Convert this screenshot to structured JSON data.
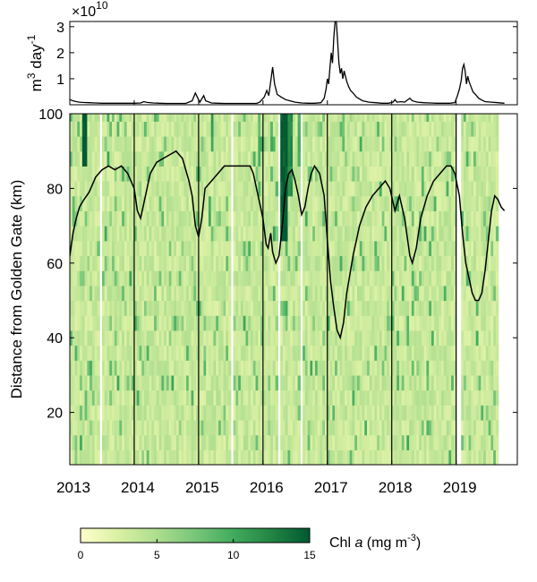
{
  "chart_data": [
    {
      "type": "line",
      "panel": "top",
      "title": "",
      "ylabel": "m³ day⁻¹",
      "ylabel_base": "m",
      "ylabel_exp1": "3",
      "ylabel_mid": " day",
      "ylabel_exp2": "-1",
      "y_multiplier": "×10",
      "y_multiplier_exp": "10",
      "xlim": [
        2013.0,
        2019.95
      ],
      "ylim": [
        0,
        3.2
      ],
      "yticks": [
        1,
        2,
        3
      ],
      "ytick_labels": [
        "1",
        "2",
        "3"
      ],
      "series": [
        {
          "values": [
            [
              2013.0,
              0.2
            ],
            [
              2013.05,
              0.15
            ],
            [
              2013.1,
              0.12
            ],
            [
              2013.15,
              0.1
            ],
            [
              2013.2,
              0.09
            ],
            [
              2013.3,
              0.08
            ],
            [
              2013.4,
              0.07
            ],
            [
              2013.5,
              0.06
            ],
            [
              2013.6,
              0.06
            ],
            [
              2013.7,
              0.06
            ],
            [
              2013.8,
              0.06
            ],
            [
              2013.9,
              0.06
            ],
            [
              2014.0,
              0.06
            ],
            [
              2014.1,
              0.07
            ],
            [
              2014.15,
              0.12
            ],
            [
              2014.2,
              0.09
            ],
            [
              2014.3,
              0.07
            ],
            [
              2014.4,
              0.06
            ],
            [
              2014.5,
              0.05
            ],
            [
              2014.6,
              0.05
            ],
            [
              2014.7,
              0.05
            ],
            [
              2014.8,
              0.05
            ],
            [
              2014.9,
              0.15
            ],
            [
              2014.95,
              0.45
            ],
            [
              2014.98,
              0.3
            ],
            [
              2015.02,
              0.1
            ],
            [
              2015.08,
              0.35
            ],
            [
              2015.11,
              0.15
            ],
            [
              2015.2,
              0.07
            ],
            [
              2015.3,
              0.06
            ],
            [
              2015.4,
              0.05
            ],
            [
              2015.5,
              0.05
            ],
            [
              2015.6,
              0.05
            ],
            [
              2015.7,
              0.05
            ],
            [
              2015.8,
              0.05
            ],
            [
              2015.9,
              0.05
            ],
            [
              2015.95,
              0.1
            ],
            [
              2016.02,
              0.3
            ],
            [
              2016.06,
              0.55
            ],
            [
              2016.09,
              0.35
            ],
            [
              2016.12,
              0.9
            ],
            [
              2016.15,
              1.45
            ],
            [
              2016.18,
              0.8
            ],
            [
              2016.22,
              0.4
            ],
            [
              2016.28,
              0.3
            ],
            [
              2016.35,
              0.2
            ],
            [
              2016.42,
              0.15
            ],
            [
              2016.5,
              0.1
            ],
            [
              2016.6,
              0.07
            ],
            [
              2016.7,
              0.06
            ],
            [
              2016.8,
              0.06
            ],
            [
              2016.9,
              0.08
            ],
            [
              2016.95,
              0.25
            ],
            [
              2016.98,
              0.6
            ],
            [
              2017.0,
              1.0
            ],
            [
              2017.02,
              0.8
            ],
            [
              2017.04,
              1.4
            ],
            [
              2017.06,
              2.0
            ],
            [
              2017.08,
              1.6
            ],
            [
              2017.1,
              2.6
            ],
            [
              2017.12,
              3.2
            ],
            [
              2017.14,
              3.2
            ],
            [
              2017.16,
              2.4
            ],
            [
              2017.18,
              1.6
            ],
            [
              2017.2,
              1.2
            ],
            [
              2017.22,
              1.4
            ],
            [
              2017.24,
              1.0
            ],
            [
              2017.26,
              1.3
            ],
            [
              2017.28,
              1.1
            ],
            [
              2017.3,
              0.9
            ],
            [
              2017.33,
              0.7
            ],
            [
              2017.36,
              0.55
            ],
            [
              2017.4,
              0.45
            ],
            [
              2017.45,
              0.3
            ],
            [
              2017.5,
              0.22
            ],
            [
              2017.55,
              0.15
            ],
            [
              2017.65,
              0.1
            ],
            [
              2017.75,
              0.08
            ],
            [
              2017.85,
              0.06
            ],
            [
              2017.95,
              0.06
            ],
            [
              2018.02,
              0.1
            ],
            [
              2018.05,
              0.2
            ],
            [
              2018.08,
              0.1
            ],
            [
              2018.15,
              0.12
            ],
            [
              2018.2,
              0.1
            ],
            [
              2018.28,
              0.25
            ],
            [
              2018.32,
              0.15
            ],
            [
              2018.4,
              0.1
            ],
            [
              2018.5,
              0.08
            ],
            [
              2018.6,
              0.07
            ],
            [
              2018.7,
              0.06
            ],
            [
              2018.8,
              0.06
            ],
            [
              2018.9,
              0.06
            ],
            [
              2018.98,
              0.08
            ],
            [
              2019.02,
              0.35
            ],
            [
              2019.05,
              0.6
            ],
            [
              2019.08,
              0.95
            ],
            [
              2019.1,
              1.4
            ],
            [
              2019.12,
              1.55
            ],
            [
              2019.14,
              1.3
            ],
            [
              2019.16,
              0.8
            ],
            [
              2019.18,
              1.1
            ],
            [
              2019.2,
              0.9
            ],
            [
              2019.23,
              0.7
            ],
            [
              2019.26,
              0.5
            ],
            [
              2019.3,
              0.4
            ],
            [
              2019.35,
              0.25
            ],
            [
              2019.4,
              0.18
            ],
            [
              2019.45,
              0.12
            ],
            [
              2019.55,
              0.1
            ],
            [
              2019.65,
              0.08
            ],
            [
              2019.75,
              0.06
            ]
          ]
        }
      ]
    },
    {
      "type": "heatmap",
      "panel": "bottom",
      "title": "",
      "ylabel": "Distance from Golden Gate  (km)",
      "xlim": [
        2013.0,
        2019.95
      ],
      "ylim": [
        6,
        100
      ],
      "yticks": [
        20,
        40,
        60,
        80,
        100
      ],
      "ytick_labels": [
        "20",
        "40",
        "60",
        "80",
        "100"
      ],
      "xticks": [
        2013,
        2014,
        2015,
        2016,
        2017,
        2018,
        2019
      ],
      "xtick_labels": [
        "2013",
        "2014",
        "2015",
        "2016",
        "2017",
        "2018",
        "2019"
      ],
      "year_dividers": [
        2014,
        2015,
        2016,
        2017,
        2018,
        2019
      ],
      "km_bins": [
        8,
        12,
        16,
        20,
        24,
        28,
        32,
        36,
        40,
        44,
        48,
        52,
        56,
        60,
        64,
        68,
        72,
        76,
        80,
        84,
        88,
        92,
        96
      ],
      "no_data_periods": [
        [
          2013.46,
          2013.5
        ],
        [
          2015.5,
          2015.55
        ],
        [
          2016.22,
          2016.26
        ],
        [
          2016.58,
          2016.62
        ],
        [
          2019.0,
          2019.08
        ]
      ],
      "colorbar": {
        "label_base": "Chl ",
        "label_italic": "a",
        "label_unit": " (mg m",
        "label_exp": "-3",
        "label_close": ")",
        "range": [
          0,
          15
        ],
        "ticks": [
          0,
          5,
          10,
          15
        ],
        "tick_labels": [
          "0",
          "5",
          "10",
          "15"
        ],
        "colors": [
          "#ffffcc",
          "#d9f0a3",
          "#addd8e",
          "#78c679",
          "#41ab5d",
          "#238443",
          "#005a32"
        ]
      },
      "x2_line": [
        [
          2013.0,
          62
        ],
        [
          2013.05,
          68
        ],
        [
          2013.1,
          72
        ],
        [
          2013.15,
          75
        ],
        [
          2013.22,
          77
        ],
        [
          2013.3,
          79
        ],
        [
          2013.4,
          83
        ],
        [
          2013.5,
          85
        ],
        [
          2013.6,
          86
        ],
        [
          2013.7,
          85
        ],
        [
          2013.8,
          86
        ],
        [
          2013.9,
          84
        ],
        [
          2014.0,
          80
        ],
        [
          2014.05,
          74
        ],
        [
          2014.1,
          72
        ],
        [
          2014.15,
          76
        ],
        [
          2014.25,
          84
        ],
        [
          2014.35,
          87
        ],
        [
          2014.45,
          88
        ],
        [
          2014.55,
          89
        ],
        [
          2014.65,
          90
        ],
        [
          2014.75,
          88
        ],
        [
          2014.85,
          82
        ],
        [
          2014.9,
          78
        ],
        [
          2014.95,
          70
        ],
        [
          2015.0,
          67
        ],
        [
          2015.05,
          72
        ],
        [
          2015.1,
          80
        ],
        [
          2015.2,
          82
        ],
        [
          2015.3,
          84
        ],
        [
          2015.4,
          86
        ],
        [
          2015.5,
          86
        ],
        [
          2015.6,
          86
        ],
        [
          2015.7,
          86
        ],
        [
          2015.8,
          86
        ],
        [
          2015.85,
          84
        ],
        [
          2015.9,
          80
        ],
        [
          2015.95,
          76
        ],
        [
          2016.0,
          72
        ],
        [
          2016.05,
          65
        ],
        [
          2016.08,
          64
        ],
        [
          2016.12,
          68
        ],
        [
          2016.15,
          63
        ],
        [
          2016.2,
          60
        ],
        [
          2016.25,
          62
        ],
        [
          2016.3,
          70
        ],
        [
          2016.35,
          80
        ],
        [
          2016.4,
          84
        ],
        [
          2016.45,
          85
        ],
        [
          2016.5,
          82
        ],
        [
          2016.55,
          78
        ],
        [
          2016.6,
          73
        ],
        [
          2016.65,
          75
        ],
        [
          2016.7,
          80
        ],
        [
          2016.75,
          84
        ],
        [
          2016.8,
          86
        ],
        [
          2016.88,
          84
        ],
        [
          2016.95,
          78
        ],
        [
          2017.0,
          66
        ],
        [
          2017.05,
          55
        ],
        [
          2017.1,
          48
        ],
        [
          2017.15,
          42
        ],
        [
          2017.2,
          40
        ],
        [
          2017.25,
          44
        ],
        [
          2017.3,
          52
        ],
        [
          2017.4,
          62
        ],
        [
          2017.5,
          70
        ],
        [
          2017.6,
          75
        ],
        [
          2017.7,
          78
        ],
        [
          2017.8,
          80
        ],
        [
          2017.9,
          82
        ],
        [
          2017.97,
          80
        ],
        [
          2018.05,
          74
        ],
        [
          2018.12,
          78
        ],
        [
          2018.2,
          72
        ],
        [
          2018.28,
          62
        ],
        [
          2018.32,
          60
        ],
        [
          2018.38,
          64
        ],
        [
          2018.45,
          72
        ],
        [
          2018.55,
          78
        ],
        [
          2018.65,
          82
        ],
        [
          2018.75,
          84
        ],
        [
          2018.85,
          86
        ],
        [
          2018.92,
          86
        ],
        [
          2018.98,
          84
        ],
        [
          2019.05,
          78
        ],
        [
          2019.1,
          68
        ],
        [
          2019.15,
          60
        ],
        [
          2019.2,
          56
        ],
        [
          2019.25,
          52
        ],
        [
          2019.3,
          50
        ],
        [
          2019.35,
          50
        ],
        [
          2019.4,
          52
        ],
        [
          2019.45,
          58
        ],
        [
          2019.5,
          66
        ],
        [
          2019.55,
          74
        ],
        [
          2019.6,
          78
        ],
        [
          2019.65,
          77
        ],
        [
          2019.7,
          75
        ],
        [
          2019.75,
          74
        ]
      ]
    }
  ]
}
